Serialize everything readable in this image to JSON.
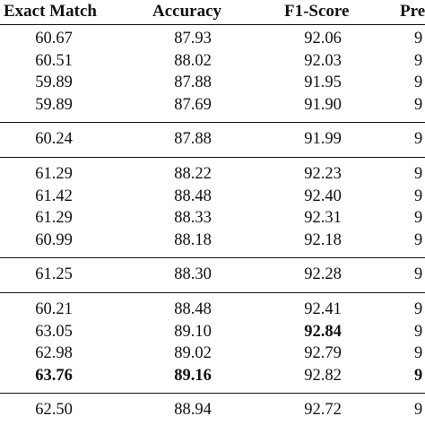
{
  "headers": [
    "Exact Match",
    "Accuracy",
    "F1-Score",
    "Pre"
  ],
  "groups": [
    {
      "rows": [
        {
          "cells": [
            "60.67",
            "87.93",
            "92.06",
            "9"
          ],
          "bold": [
            false,
            false,
            false,
            false
          ]
        },
        {
          "cells": [
            "60.51",
            "88.02",
            "92.03",
            "9"
          ],
          "bold": [
            false,
            false,
            false,
            false
          ]
        },
        {
          "cells": [
            "59.89",
            "87.88",
            "91.95",
            "9"
          ],
          "bold": [
            false,
            false,
            false,
            false
          ]
        },
        {
          "cells": [
            "59.89",
            "87.69",
            "91.90",
            "9"
          ],
          "bold": [
            false,
            false,
            false,
            false
          ]
        }
      ]
    },
    {
      "rows": [
        {
          "cells": [
            "60.24",
            "87.88",
            "91.99",
            "9"
          ],
          "bold": [
            false,
            false,
            false,
            false
          ]
        }
      ]
    },
    {
      "rows": [
        {
          "cells": [
            "61.29",
            "88.22",
            "92.23",
            "9"
          ],
          "bold": [
            false,
            false,
            false,
            false
          ]
        },
        {
          "cells": [
            "61.42",
            "88.48",
            "92.40",
            "9"
          ],
          "bold": [
            false,
            false,
            false,
            false
          ]
        },
        {
          "cells": [
            "61.29",
            "88.33",
            "92.31",
            "9"
          ],
          "bold": [
            false,
            false,
            false,
            false
          ]
        },
        {
          "cells": [
            "60.99",
            "88.18",
            "92.18",
            "9"
          ],
          "bold": [
            false,
            false,
            false,
            false
          ]
        }
      ]
    },
    {
      "rows": [
        {
          "cells": [
            "61.25",
            "88.30",
            "92.28",
            "9"
          ],
          "bold": [
            false,
            false,
            false,
            false
          ]
        }
      ]
    },
    {
      "rows": [
        {
          "cells": [
            "60.21",
            "88.48",
            "92.41",
            "9"
          ],
          "bold": [
            false,
            false,
            false,
            false
          ]
        },
        {
          "cells": [
            "63.05",
            "89.10",
            "92.84",
            "9"
          ],
          "bold": [
            false,
            false,
            true,
            false
          ]
        },
        {
          "cells": [
            "62.98",
            "89.02",
            "92.79",
            "9"
          ],
          "bold": [
            false,
            false,
            false,
            false
          ]
        },
        {
          "cells": [
            "63.76",
            "89.16",
            "92.82",
            "9"
          ],
          "bold": [
            true,
            true,
            false,
            true
          ]
        }
      ]
    },
    {
      "rows": [
        {
          "cells": [
            "62.50",
            "88.94",
            "92.72",
            "9"
          ],
          "bold": [
            false,
            false,
            false,
            false
          ]
        }
      ]
    }
  ]
}
